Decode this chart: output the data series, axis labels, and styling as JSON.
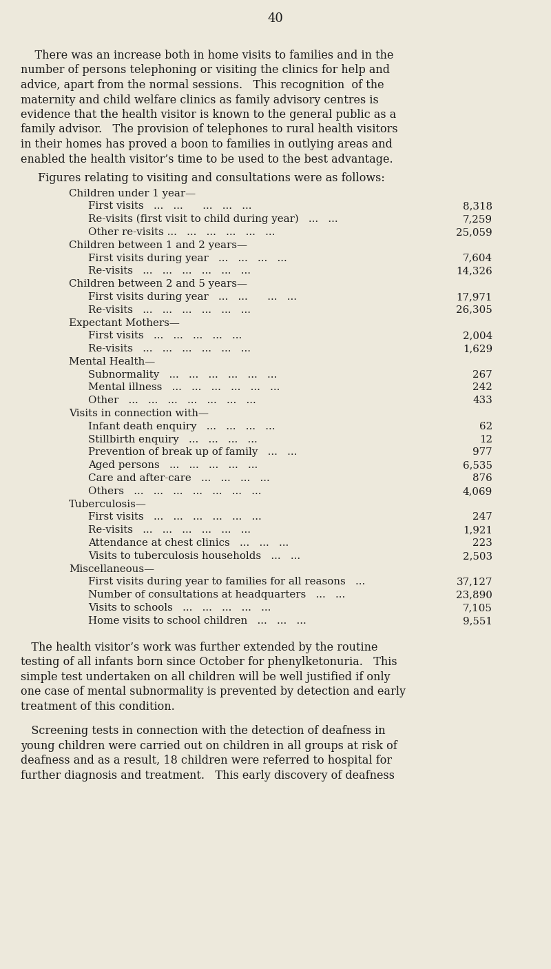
{
  "page_number": "40",
  "bg_color": "#ede9dc",
  "text_color": "#1c1c1c",
  "intro_lines": [
    [
      "    There was an increase both in home visits to families and in the",
      false
    ],
    [
      "number of persons telephoning or visiting the clinics for help and",
      false
    ],
    [
      "advice, apart from the normal sessions.   This recognition  of the",
      false
    ],
    [
      "maternity and child welfare clinics as family advisory centres is",
      false
    ],
    [
      "evidence that the health visitor is known to the general public as a",
      false
    ],
    [
      "family advisor.   The provision of telephones to rural health visitors",
      false
    ],
    [
      "in their homes has proved a boon to families in outlying areas and",
      false
    ],
    [
      "enabled the health visitor’s time to be used to the best advantage.",
      false
    ]
  ],
  "figures_heading": "Figures relating to visiting and consultations were as follows:",
  "table_entries": [
    {
      "label": "Children under 1 year—",
      "value": null,
      "indent": 0
    },
    {
      "label": "First visits   ...   ...      ...   ...   ...",
      "value": "8,318",
      "indent": 1
    },
    {
      "label": "Re-visits (first visit to child during year)   ...   ...",
      "value": "7,259",
      "indent": 1
    },
    {
      "label": "Other re-visits ...   ...   ...   ...   ...   ...",
      "value": "25,059",
      "indent": 1
    },
    {
      "label": "Children between 1 and 2 years—",
      "value": null,
      "indent": 0
    },
    {
      "label": "First visits during year   ...   ...   ...   ...",
      "value": "7,604",
      "indent": 1
    },
    {
      "label": "Re-visits   ...   ...   ...   ...   ...   ...",
      "value": "14,326",
      "indent": 1
    },
    {
      "label": "Children between 2 and 5 years—",
      "value": null,
      "indent": 0
    },
    {
      "label": "First visits during year   ...   ...      ...   ...",
      "value": "17,971",
      "indent": 1
    },
    {
      "label": "Re-visits   ...   ...   ...   ...   ...   ...",
      "value": "26,305",
      "indent": 1
    },
    {
      "label": "Expectant Mothers—",
      "value": null,
      "indent": 0
    },
    {
      "label": "First visits   ...   ...   ...   ...   ...",
      "value": "2,004",
      "indent": 1
    },
    {
      "label": "Re-visits   ...   ...   ...   ...   ...   ...",
      "value": "1,629",
      "indent": 1
    },
    {
      "label": "Mental Health—",
      "value": null,
      "indent": 0
    },
    {
      "label": "Subnormality   ...   ...   ...   ...   ...   ...",
      "value": "267",
      "indent": 1
    },
    {
      "label": "Mental illness   ...   ...   ...   ...   ...   ...",
      "value": "242",
      "indent": 1
    },
    {
      "label": "Other   ...   ...   ...   ...   ...   ...   ...",
      "value": "433",
      "indent": 1
    },
    {
      "label": "Visits in connection with—",
      "value": null,
      "indent": 0
    },
    {
      "label": "Infant death enquiry   ...   ...   ...   ...",
      "value": "62",
      "indent": 1
    },
    {
      "label": "Stillbirth enquiry   ...   ...   ...   ...",
      "value": "12",
      "indent": 1
    },
    {
      "label": "Prevention of break up of family   ...   ...",
      "value": "977",
      "indent": 1
    },
    {
      "label": "Aged persons   ...   ...   ...   ...   ...",
      "value": "6,535",
      "indent": 1
    },
    {
      "label": "Care and after-care   ...   ...   ...   ...",
      "value": "876",
      "indent": 1
    },
    {
      "label": "Others   ...   ...   ...   ...   ...   ...   ...",
      "value": "4,069",
      "indent": 1
    },
    {
      "label": "Tuberculosis—",
      "value": null,
      "indent": 0
    },
    {
      "label": "First visits   ...   ...   ...   ...   ...   ...",
      "value": "247",
      "indent": 1
    },
    {
      "label": "Re-visits   ...   ...   ...   ...   ...   ...",
      "value": "1,921",
      "indent": 1
    },
    {
      "label": "Attendance at chest clinics   ...   ...   ...",
      "value": "223",
      "indent": 1
    },
    {
      "label": "Visits to tuberculosis households   ...   ...",
      "value": "2,503",
      "indent": 1
    },
    {
      "label": "Miscellaneous—",
      "value": null,
      "indent": 0
    },
    {
      "label": "First visits during year to families for all reasons   ...",
      "value": "37,127",
      "indent": 1
    },
    {
      "label": "Number of consultations at headquarters   ...   ...",
      "value": "23,890",
      "indent": 1
    },
    {
      "label": "Visits to schools   ...   ...   ...   ...   ...",
      "value": "7,105",
      "indent": 1
    },
    {
      "label": "Home visits to school children   ...   ...   ...",
      "value": "9,551",
      "indent": 1
    }
  ],
  "closing1_lines": [
    [
      "   The health visitor’s work was further extended by the routine",
      false
    ],
    [
      "testing of all infants born since October for phenylketonuria.   This",
      false
    ],
    [
      "simple test undertaken on all children will be well justified if only",
      false
    ],
    [
      "one case of mental subnormality is prevented by detection and early",
      false
    ],
    [
      "treatment of this condition.",
      false
    ]
  ],
  "closing2_lines": [
    [
      "   Screening tests in connection with the detection of deafness in",
      false
    ],
    [
      "young children were carried out on children in all groups at risk of",
      false
    ],
    [
      "deafness and as a result, 18 children were referred to hospital for",
      false
    ],
    [
      "further diagnosis and treatment.   This early discovery of deafness",
      false
    ]
  ]
}
